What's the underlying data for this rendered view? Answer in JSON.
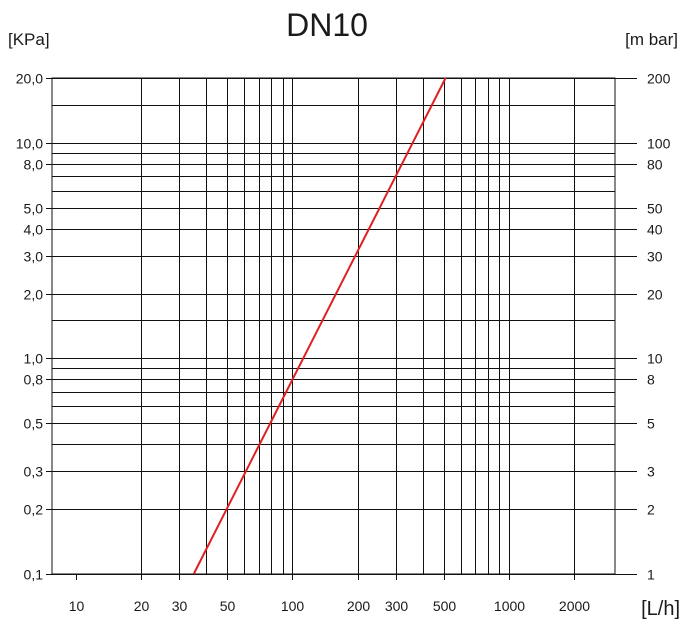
{
  "chart_data": {
    "type": "line",
    "title": "DN10",
    "xlabel": "[L/h]",
    "ylabel_left": "[KPa]",
    "ylabel_right": "[m bar]",
    "x_scale": "log",
    "y_scale": "log",
    "xlim": [
      10,
      2600
    ],
    "ylim": [
      0.1,
      20
    ],
    "grid": true,
    "x_ticks": [
      {
        "value": 10,
        "label": "10"
      },
      {
        "value": 20,
        "label": "20"
      },
      {
        "value": 30,
        "label": "30"
      },
      {
        "value": 50,
        "label": "50"
      },
      {
        "value": 100,
        "label": "100"
      },
      {
        "value": 200,
        "label": "200"
      },
      {
        "value": 300,
        "label": "300"
      },
      {
        "value": 500,
        "label": "500"
      },
      {
        "value": 1000,
        "label": "1000"
      },
      {
        "value": 2000,
        "label": "2000"
      }
    ],
    "x_gridlines": [
      20,
      30,
      40,
      50,
      60,
      70,
      80,
      90,
      100,
      200,
      300,
      400,
      500,
      600,
      700,
      800,
      900,
      1000,
      2000
    ],
    "y_ticks_left": [
      {
        "value": 0.1,
        "label": "0,1"
      },
      {
        "value": 0.2,
        "label": "0,2"
      },
      {
        "value": 0.3,
        "label": "0,3"
      },
      {
        "value": 0.5,
        "label": "0,5"
      },
      {
        "value": 0.8,
        "label": "0,8"
      },
      {
        "value": 1,
        "label": "1,0"
      },
      {
        "value": 2,
        "label": "2,0"
      },
      {
        "value": 3,
        "label": "3,0"
      },
      {
        "value": 4,
        "label": "4,0"
      },
      {
        "value": 5,
        "label": "5,0"
      },
      {
        "value": 8,
        "label": "8,0"
      },
      {
        "value": 10,
        "label": "10,0"
      },
      {
        "value": 20,
        "label": "20,0"
      }
    ],
    "y_ticks_right": [
      {
        "value": 0.1,
        "label": "1"
      },
      {
        "value": 0.2,
        "label": "2"
      },
      {
        "value": 0.3,
        "label": "3"
      },
      {
        "value": 0.5,
        "label": "5"
      },
      {
        "value": 0.8,
        "label": "8"
      },
      {
        "value": 1,
        "label": "10"
      },
      {
        "value": 2,
        "label": "20"
      },
      {
        "value": 3,
        "label": "30"
      },
      {
        "value": 4,
        "label": "40"
      },
      {
        "value": 5,
        "label": "50"
      },
      {
        "value": 8,
        "label": "80"
      },
      {
        "value": 10,
        "label": "100"
      },
      {
        "value": 20,
        "label": "200"
      }
    ],
    "y_gridlines": [
      0.1,
      0.2,
      0.3,
      0.4,
      0.5,
      0.6,
      0.7,
      0.8,
      0.9,
      1,
      1.5,
      2,
      3,
      4,
      5,
      6,
      7,
      8,
      9,
      10,
      15,
      20
    ],
    "series": [
      {
        "color": "#e02020",
        "x": [
          35,
          510
        ],
        "y": [
          0.1,
          20
        ]
      }
    ]
  }
}
